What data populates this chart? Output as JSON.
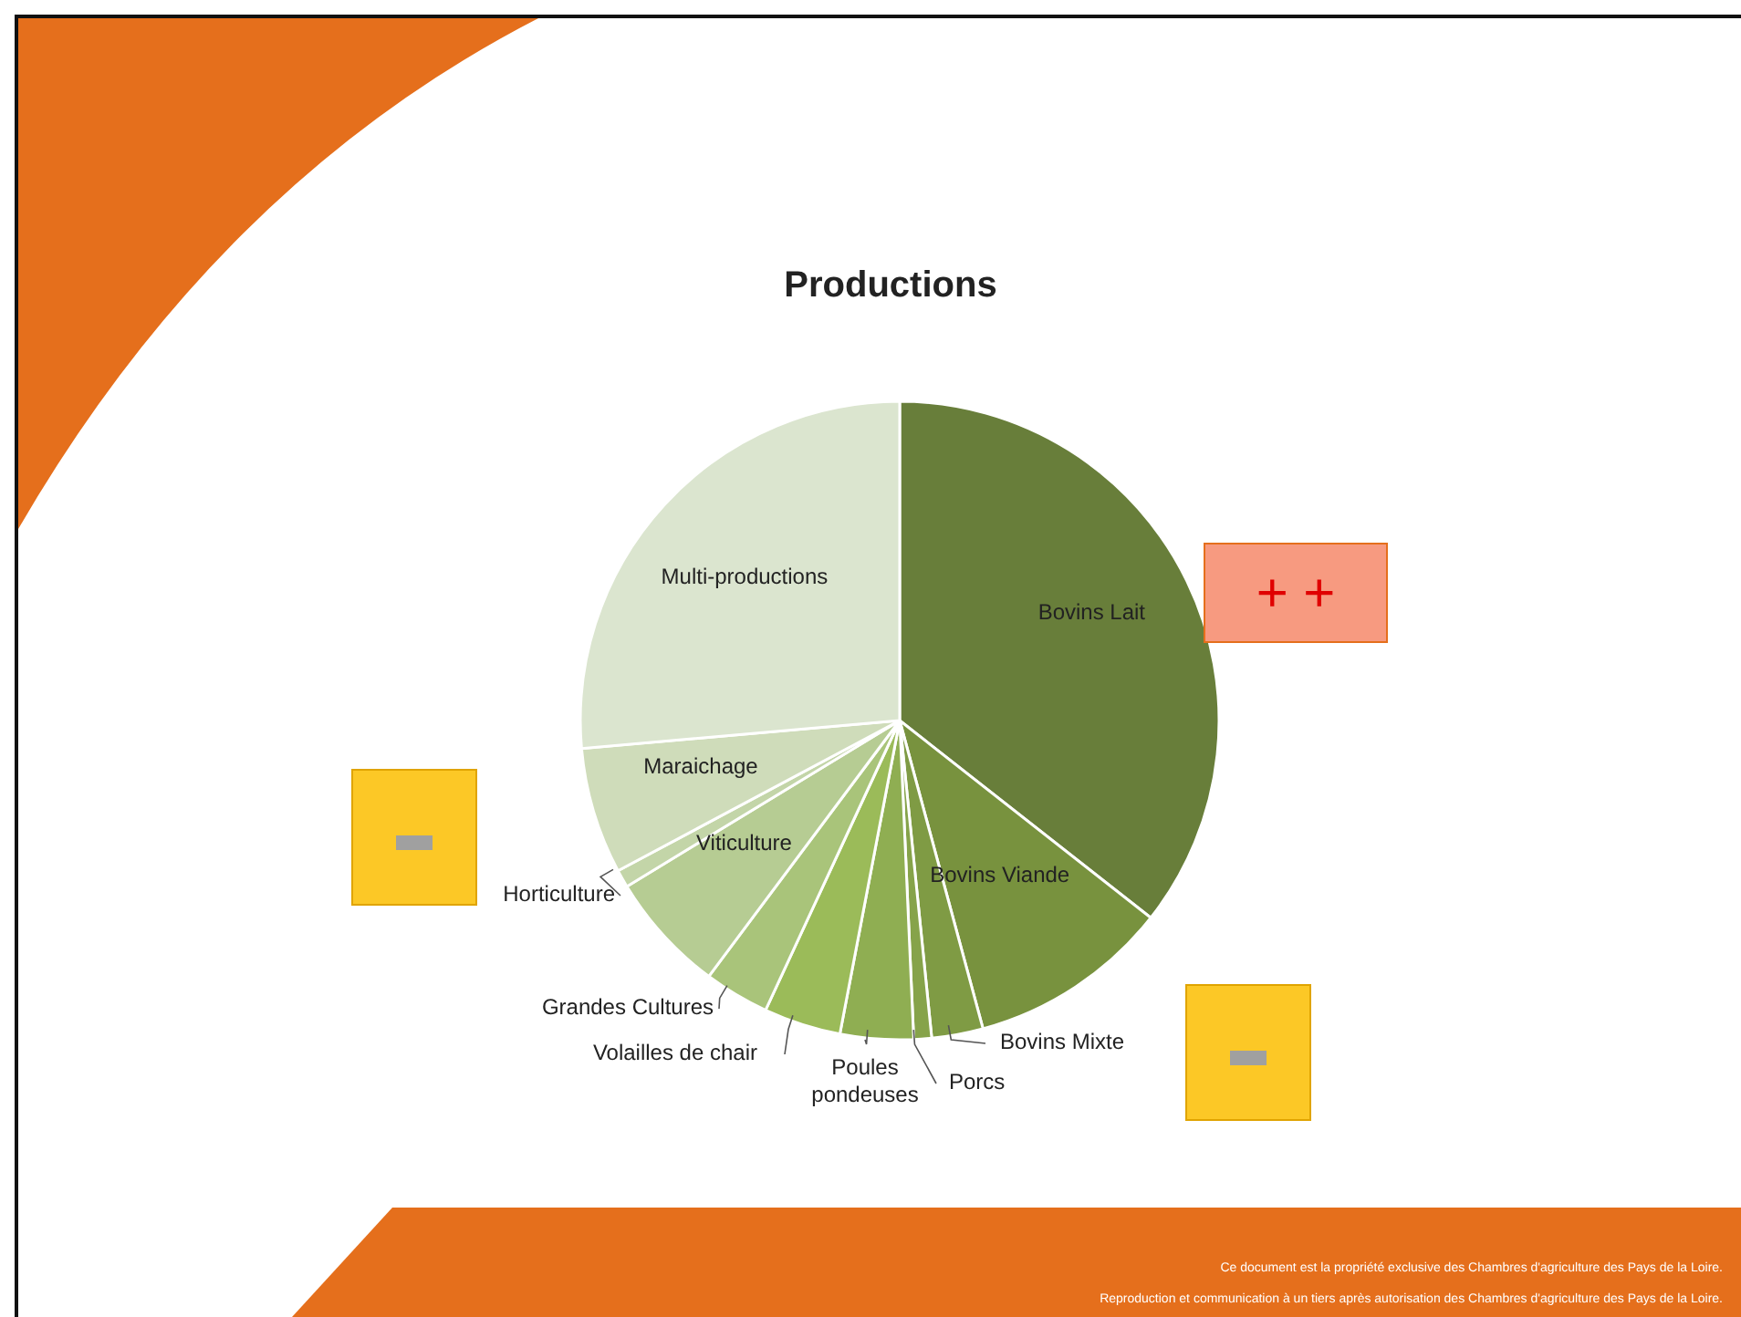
{
  "chart_data": {
    "type": "pie",
    "title": "Productions",
    "categories": [
      "Bovins Lait",
      "Bovins Viande",
      "Bovins Mixte",
      "Porcs",
      "Poules pondeuses",
      "Volailles de chair",
      "Grandes Cultures",
      "Viticulture",
      "Horticulture",
      "Maraichage",
      "Multi-productions"
    ],
    "values": [
      35.6,
      10.2,
      2.6,
      0.9,
      3.7,
      3.9,
      3.3,
      6.1,
      0.9,
      6.4,
      26.4
    ],
    "colors": [
      "#687e3a",
      "#78923e",
      "#7f9b44",
      "#86a34a",
      "#8fae52",
      "#9bbb59",
      "#a9c47a",
      "#b6cc93",
      "#c3d5a8",
      "#cfdcba",
      "#dbe5cf"
    ],
    "annotations": [
      "+ +",
      "Ce document est la propriété exclusive des Chambres d'agriculture des Pays de la Loire.",
      "Reproduction et communication à un tiers après autorisation des Chambres d'agriculture des Pays de la Loire."
    ]
  }
}
